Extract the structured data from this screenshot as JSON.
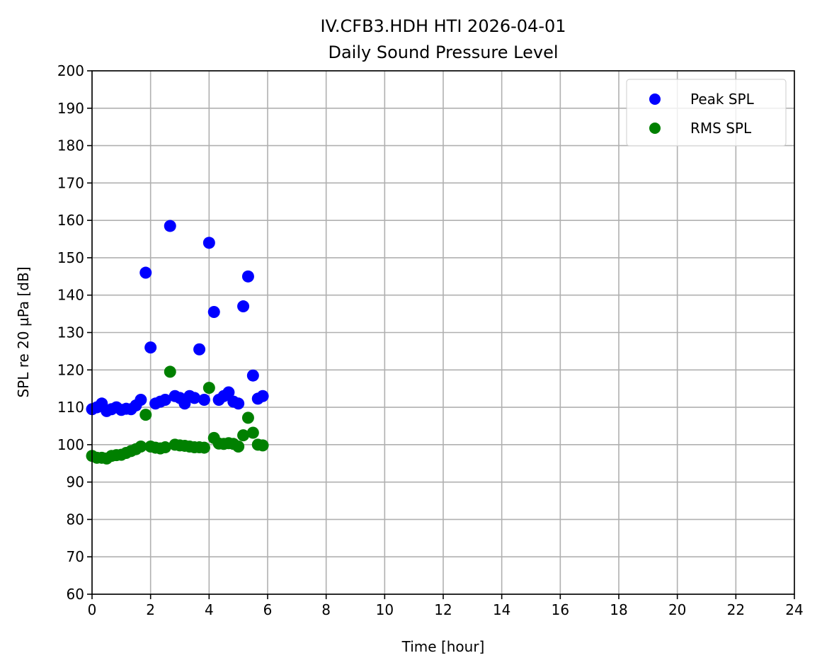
{
  "chart_data": {
    "type": "scatter",
    "title": "IV.CFB3.HDH HTI 2026-04-01",
    "subtitle": "Daily Sound Pressure Level",
    "xlabel": "Time [hour]",
    "ylabel": "SPL re 20 µPa [dB]",
    "xlim": [
      0,
      24
    ],
    "ylim": [
      60,
      200
    ],
    "xticks": [
      0,
      2,
      4,
      6,
      8,
      10,
      12,
      14,
      16,
      18,
      20,
      22,
      24
    ],
    "yticks": [
      60,
      70,
      80,
      90,
      100,
      110,
      120,
      130,
      140,
      150,
      160,
      170,
      180,
      190,
      200
    ],
    "grid": true,
    "legend_position": "top-right",
    "x": [
      0,
      0.167,
      0.333,
      0.5,
      0.667,
      0.833,
      1.0,
      1.167,
      1.333,
      1.5,
      1.667,
      1.833,
      2.0,
      2.167,
      2.333,
      2.5,
      2.667,
      2.833,
      3.0,
      3.167,
      3.333,
      3.5,
      3.667,
      3.833,
      4.0,
      4.167,
      4.333,
      4.5,
      4.667,
      4.833,
      5.0,
      5.167,
      5.333,
      5.5,
      5.667,
      5.833
    ],
    "series": [
      {
        "name": "Peak SPL",
        "color": "#0000ff",
        "values": [
          109.5,
          110,
          111,
          109,
          109.5,
          110,
          109.3,
          109.6,
          109.5,
          110.5,
          112,
          146,
          126,
          111,
          111.5,
          112,
          158.5,
          113,
          112.5,
          111,
          113,
          112.5,
          125.5,
          112,
          154,
          135.5,
          112,
          113,
          114,
          111.5,
          111,
          137,
          145,
          118.5,
          112.3,
          113
        ]
      },
      {
        "name": "RMS SPL",
        "color": "#008000",
        "values": [
          97,
          96.5,
          96.5,
          96.3,
          97,
          97.2,
          97.3,
          97.8,
          98.3,
          98.8,
          99.5,
          108,
          99.5,
          99.2,
          99,
          99.3,
          119.5,
          100,
          99.8,
          99.7,
          99.5,
          99.3,
          99.3,
          99.2,
          115.2,
          101.8,
          100.3,
          100.2,
          100.4,
          100.2,
          99.5,
          102.5,
          107.2,
          103.2,
          100,
          99.8
        ]
      }
    ]
  }
}
